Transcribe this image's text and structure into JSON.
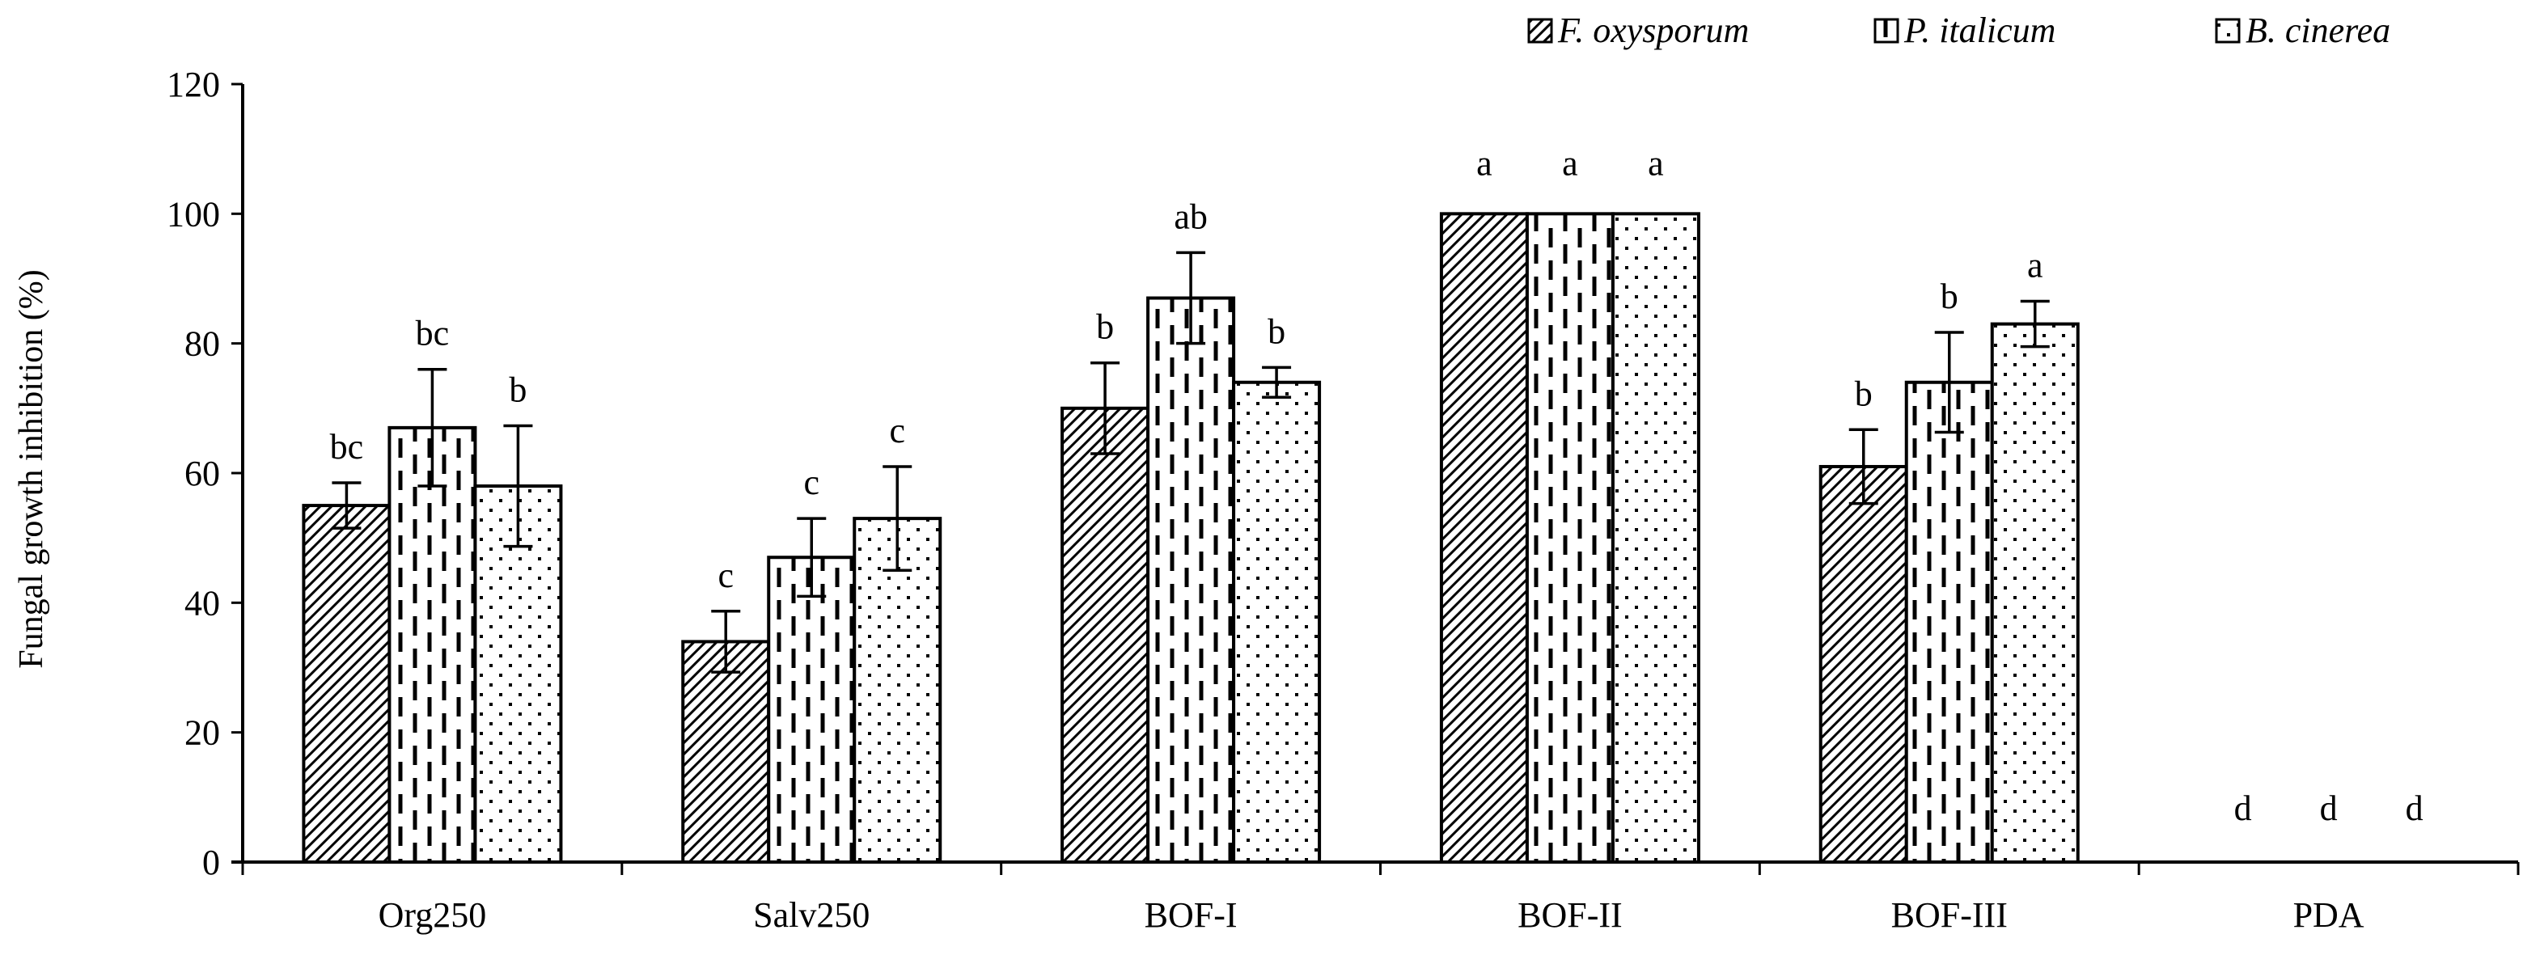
{
  "chart_data": {
    "type": "bar",
    "title": "",
    "xlabel": "",
    "ylabel": "Fungal growth inhibition (%)",
    "ylim": [
      0,
      120
    ],
    "yticks": [
      "0",
      "20",
      "40",
      "60",
      "80",
      "100",
      "120"
    ],
    "grid": false,
    "legend_position": "top-right",
    "categories": [
      "Org250",
      "Salv250",
      "BOF-I",
      "BOF-II",
      "BOF-III",
      "PDA"
    ],
    "series": [
      {
        "name": "F. oxysporum",
        "pattern": "diagonal-hatch",
        "values": [
          55,
          34,
          70,
          100,
          61,
          0
        ],
        "errors": [
          3.5,
          4.7,
          7,
          0,
          5.7,
          0
        ],
        "letters": [
          "bc",
          "c",
          "b",
          "a",
          "b",
          "d"
        ]
      },
      {
        "name": "P. italicum",
        "pattern": "dashed-vertical",
        "values": [
          67,
          47,
          87,
          100,
          74,
          0
        ],
        "errors": [
          9,
          6,
          7,
          0,
          7.7,
          0
        ],
        "letters": [
          "bc",
          "c",
          "ab",
          "a",
          "b",
          "d"
        ]
      },
      {
        "name": "B. cinerea",
        "pattern": "dotted",
        "values": [
          58,
          53,
          74,
          100,
          83,
          0
        ],
        "errors": [
          9.3,
          8,
          2.3,
          0,
          3.5,
          0
        ],
        "letters": [
          "b",
          "c",
          "b",
          "a",
          "a",
          "d"
        ]
      }
    ]
  }
}
